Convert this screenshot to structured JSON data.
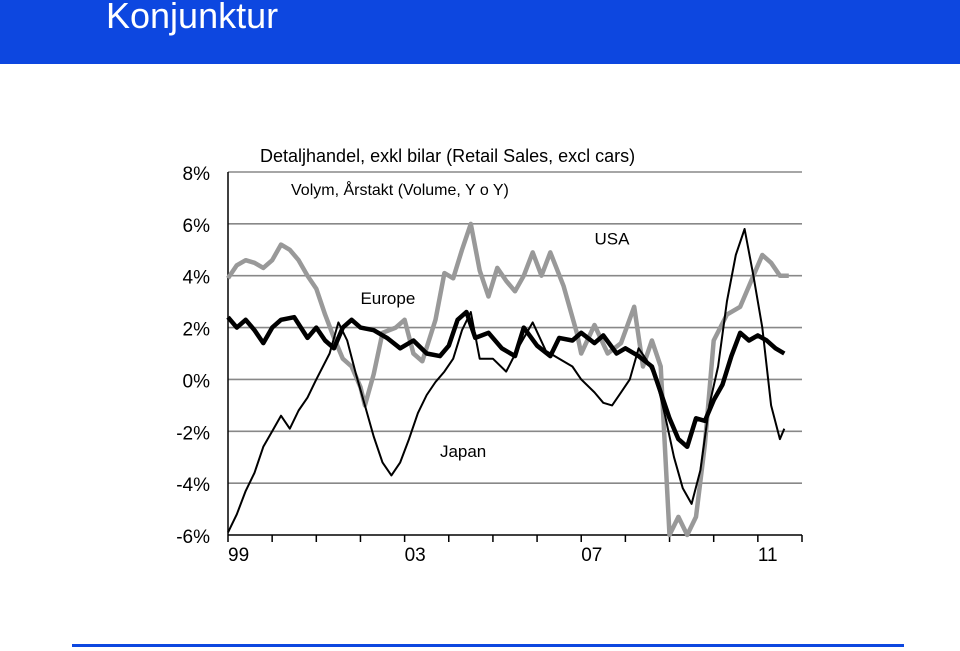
{
  "header": {
    "title": "Konjunktur"
  },
  "colors": {
    "header_bg": "#0d47e0",
    "usa": "#999999",
    "europe": "#000000",
    "japan": "#000000",
    "footer_line": "#0d47e0"
  },
  "chart_data": {
    "type": "line",
    "title": "Detaljhandel, exkl bilar (Retail Sales, excl cars)",
    "subtitle": "Volym, Årstakt (Volume, Y o Y)",
    "xlabel": "",
    "ylabel": "",
    "xlim": [
      1999.0,
      2012.0
    ],
    "ylim": [
      -6,
      8
    ],
    "yticks": [
      8,
      6,
      4,
      2,
      0,
      -2,
      -4,
      -6
    ],
    "ytick_labels": [
      "8%",
      "6%",
      "4%",
      "2%",
      "0%",
      "-2%",
      "-4%",
      "-6%"
    ],
    "xtick_labels": [
      {
        "x": 1999.0,
        "label": "99"
      },
      {
        "x": 2003.0,
        "label": "03"
      },
      {
        "x": 2007.0,
        "label": "07"
      },
      {
        "x": 2011.0,
        "label": "11"
      }
    ],
    "grid": {
      "horizontal": true,
      "vertical": false
    },
    "series": [
      {
        "name": "USA",
        "style": "thick-gray",
        "points": [
          [
            1999.0,
            3.9
          ],
          [
            1999.2,
            4.4
          ],
          [
            1999.4,
            4.6
          ],
          [
            1999.6,
            4.5
          ],
          [
            1999.8,
            4.3
          ],
          [
            2000.0,
            4.6
          ],
          [
            2000.2,
            5.2
          ],
          [
            2000.4,
            5.0
          ],
          [
            2000.6,
            4.6
          ],
          [
            2000.8,
            4.0
          ],
          [
            2001.0,
            3.5
          ],
          [
            2001.2,
            2.5
          ],
          [
            2001.4,
            1.6
          ],
          [
            2001.6,
            0.8
          ],
          [
            2001.8,
            0.5
          ],
          [
            2002.0,
            -0.3
          ],
          [
            2002.1,
            -1.0
          ],
          [
            2002.3,
            0.2
          ],
          [
            2002.5,
            1.8
          ],
          [
            2002.8,
            2.0
          ],
          [
            2003.0,
            2.3
          ],
          [
            2003.2,
            1.0
          ],
          [
            2003.4,
            0.7
          ],
          [
            2003.7,
            2.3
          ],
          [
            2003.9,
            4.1
          ],
          [
            2004.1,
            3.9
          ],
          [
            2004.3,
            5.0
          ],
          [
            2004.5,
            6.0
          ],
          [
            2004.7,
            4.2
          ],
          [
            2004.9,
            3.2
          ],
          [
            2005.1,
            4.3
          ],
          [
            2005.3,
            3.8
          ],
          [
            2005.5,
            3.4
          ],
          [
            2005.7,
            4.0
          ],
          [
            2005.9,
            4.9
          ],
          [
            2006.1,
            4.0
          ],
          [
            2006.3,
            4.9
          ],
          [
            2006.6,
            3.6
          ],
          [
            2006.9,
            1.8
          ],
          [
            2007.0,
            1.0
          ],
          [
            2007.3,
            2.1
          ],
          [
            2007.6,
            1.0
          ],
          [
            2007.9,
            1.4
          ],
          [
            2008.2,
            2.8
          ],
          [
            2008.4,
            0.5
          ],
          [
            2008.6,
            1.5
          ],
          [
            2008.8,
            0.5
          ],
          [
            2009.0,
            -6.0
          ],
          [
            2009.2,
            -5.3
          ],
          [
            2009.4,
            -6.0
          ],
          [
            2009.6,
            -5.3
          ],
          [
            2009.8,
            -2.5
          ],
          [
            2010.0,
            1.5
          ],
          [
            2010.3,
            2.5
          ],
          [
            2010.6,
            2.8
          ],
          [
            2010.9,
            4.0
          ],
          [
            2011.1,
            4.8
          ],
          [
            2011.3,
            4.5
          ],
          [
            2011.5,
            4.0
          ],
          [
            2011.7,
            4.0
          ]
        ]
      },
      {
        "name": "Europe",
        "style": "thick-black",
        "points": [
          [
            1999.0,
            2.4
          ],
          [
            1999.2,
            2.0
          ],
          [
            1999.4,
            2.3
          ],
          [
            1999.6,
            1.9
          ],
          [
            1999.8,
            1.4
          ],
          [
            2000.0,
            2.0
          ],
          [
            2000.2,
            2.3
          ],
          [
            2000.5,
            2.4
          ],
          [
            2000.8,
            1.6
          ],
          [
            2001.0,
            2.0
          ],
          [
            2001.2,
            1.5
          ],
          [
            2001.4,
            1.2
          ],
          [
            2001.6,
            2.0
          ],
          [
            2001.8,
            2.3
          ],
          [
            2002.0,
            2.0
          ],
          [
            2002.3,
            1.9
          ],
          [
            2002.6,
            1.6
          ],
          [
            2002.9,
            1.2
          ],
          [
            2003.2,
            1.5
          ],
          [
            2003.5,
            1.0
          ],
          [
            2003.8,
            0.9
          ],
          [
            2004.0,
            1.3
          ],
          [
            2004.2,
            2.3
          ],
          [
            2004.4,
            2.6
          ],
          [
            2004.6,
            1.6
          ],
          [
            2004.9,
            1.8
          ],
          [
            2005.2,
            1.2
          ],
          [
            2005.5,
            0.9
          ],
          [
            2005.7,
            2.0
          ],
          [
            2006.0,
            1.3
          ],
          [
            2006.3,
            0.9
          ],
          [
            2006.5,
            1.6
          ],
          [
            2006.8,
            1.5
          ],
          [
            2007.0,
            1.8
          ],
          [
            2007.3,
            1.4
          ],
          [
            2007.5,
            1.7
          ],
          [
            2007.8,
            1.0
          ],
          [
            2008.0,
            1.2
          ],
          [
            2008.3,
            0.9
          ],
          [
            2008.6,
            0.5
          ],
          [
            2008.8,
            -0.5
          ],
          [
            2009.0,
            -1.5
          ],
          [
            2009.2,
            -2.3
          ],
          [
            2009.4,
            -2.6
          ],
          [
            2009.6,
            -1.5
          ],
          [
            2009.8,
            -1.6
          ],
          [
            2010.0,
            -0.8
          ],
          [
            2010.2,
            -0.2
          ],
          [
            2010.4,
            0.9
          ],
          [
            2010.6,
            1.8
          ],
          [
            2010.8,
            1.5
          ],
          [
            2011.0,
            1.7
          ],
          [
            2011.2,
            1.5
          ],
          [
            2011.4,
            1.2
          ],
          [
            2011.6,
            1.0
          ]
        ]
      },
      {
        "name": "Japan",
        "style": "thin-black",
        "points": [
          [
            1999.0,
            -5.9
          ],
          [
            1999.2,
            -5.2
          ],
          [
            1999.4,
            -4.3
          ],
          [
            1999.6,
            -3.6
          ],
          [
            1999.8,
            -2.6
          ],
          [
            2000.0,
            -2.0
          ],
          [
            2000.2,
            -1.4
          ],
          [
            2000.4,
            -1.9
          ],
          [
            2000.6,
            -1.2
          ],
          [
            2000.8,
            -0.7
          ],
          [
            2001.0,
            0.0
          ],
          [
            2001.3,
            1.0
          ],
          [
            2001.5,
            2.2
          ],
          [
            2001.7,
            1.5
          ],
          [
            2001.9,
            0.2
          ],
          [
            2002.1,
            -1.0
          ],
          [
            2002.3,
            -2.2
          ],
          [
            2002.5,
            -3.2
          ],
          [
            2002.7,
            -3.7
          ],
          [
            2002.9,
            -3.2
          ],
          [
            2003.1,
            -2.3
          ],
          [
            2003.3,
            -1.3
          ],
          [
            2003.5,
            -0.6
          ],
          [
            2003.7,
            -0.1
          ],
          [
            2003.9,
            0.3
          ],
          [
            2004.1,
            0.8
          ],
          [
            2004.3,
            1.9
          ],
          [
            2004.5,
            2.6
          ],
          [
            2004.7,
            0.8
          ],
          [
            2005.0,
            0.8
          ],
          [
            2005.3,
            0.3
          ],
          [
            2005.6,
            1.3
          ],
          [
            2005.9,
            2.2
          ],
          [
            2006.2,
            1.1
          ],
          [
            2006.5,
            0.8
          ],
          [
            2006.8,
            0.5
          ],
          [
            2007.0,
            0.0
          ],
          [
            2007.3,
            -0.5
          ],
          [
            2007.5,
            -0.9
          ],
          [
            2007.7,
            -1.0
          ],
          [
            2007.9,
            -0.5
          ],
          [
            2008.1,
            0.0
          ],
          [
            2008.3,
            1.2
          ],
          [
            2008.5,
            0.7
          ],
          [
            2008.7,
            0.0
          ],
          [
            2008.9,
            -1.4
          ],
          [
            2009.1,
            -3.0
          ],
          [
            2009.3,
            -4.2
          ],
          [
            2009.5,
            -4.8
          ],
          [
            2009.7,
            -3.5
          ],
          [
            2009.9,
            -1.0
          ],
          [
            2010.1,
            0.5
          ],
          [
            2010.3,
            3.0
          ],
          [
            2010.5,
            4.8
          ],
          [
            2010.7,
            5.8
          ],
          [
            2010.9,
            4.0
          ],
          [
            2011.1,
            2.0
          ],
          [
            2011.3,
            -1.0
          ],
          [
            2011.5,
            -2.3
          ],
          [
            2011.6,
            -1.9
          ]
        ]
      }
    ],
    "annotations": [
      {
        "text": "USA",
        "x": 2007.3,
        "y": 5.2
      },
      {
        "text": "Europe",
        "x": 2002.0,
        "y": 2.9
      },
      {
        "text": "Japan",
        "x": 2003.8,
        "y": -3.0
      }
    ]
  }
}
